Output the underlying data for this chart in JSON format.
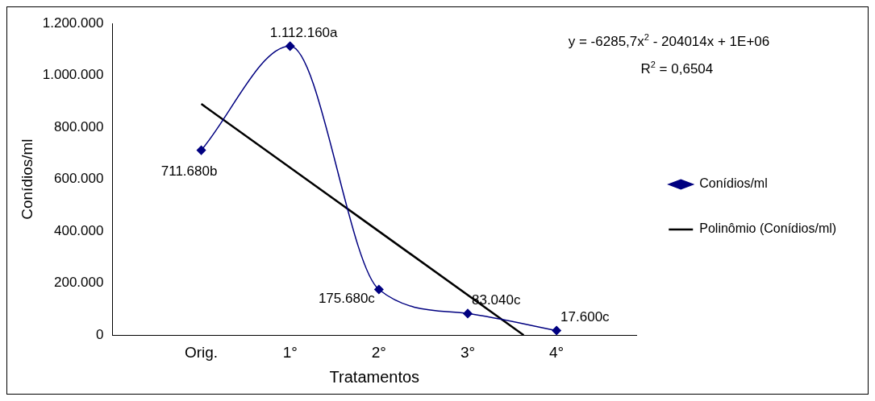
{
  "chart_data": {
    "type": "line",
    "xlabel": "Tratamentos",
    "ylabel": "Conídios/ml",
    "xlim": [
      -1,
      4.9
    ],
    "xticks": [
      {
        "value": 0,
        "label": "Orig."
      },
      {
        "value": 1,
        "label": "1°"
      },
      {
        "value": 2,
        "label": "2°"
      },
      {
        "value": 3,
        "label": "3°"
      },
      {
        "value": 4,
        "label": "4°"
      }
    ],
    "ylim": [
      0,
      1200000
    ],
    "yticks": [
      0,
      {
        "value": 200000,
        "label": "200.000"
      },
      {
        "value": 400000,
        "label": "400.000"
      },
      {
        "value": 600000,
        "label": "600.000"
      },
      {
        "value": 800000,
        "label": "800.000"
      },
      {
        "value": 1000000,
        "label": "1.000.000"
      },
      {
        "value": 1200000,
        "label": "1.200.000"
      }
    ],
    "series": [
      {
        "name": "Conídios/ml",
        "color": "#000080",
        "x": [
          0,
          1,
          2,
          3,
          4
        ],
        "values": [
          711680,
          1112160,
          175680,
          83040,
          17600
        ],
        "value_labels": [
          "711.680b",
          "1.112.160a",
          "175.680c",
          "83.040c",
          "17.600c"
        ],
        "marker": "diamond"
      },
      {
        "name": "Polinômio (Conídios/ml)",
        "type": "line",
        "color": "#000000",
        "x": [
          0,
          3.63
        ],
        "values": [
          890000,
          0
        ],
        "marker": "none"
      }
    ],
    "annotations": [
      "y = -6285,7x$^{2}$ - 204014x + 1E+06",
      "R$^{2}$ = 0,6504"
    ],
    "legend": "right",
    "grid": false,
    "line_style": "solid"
  }
}
